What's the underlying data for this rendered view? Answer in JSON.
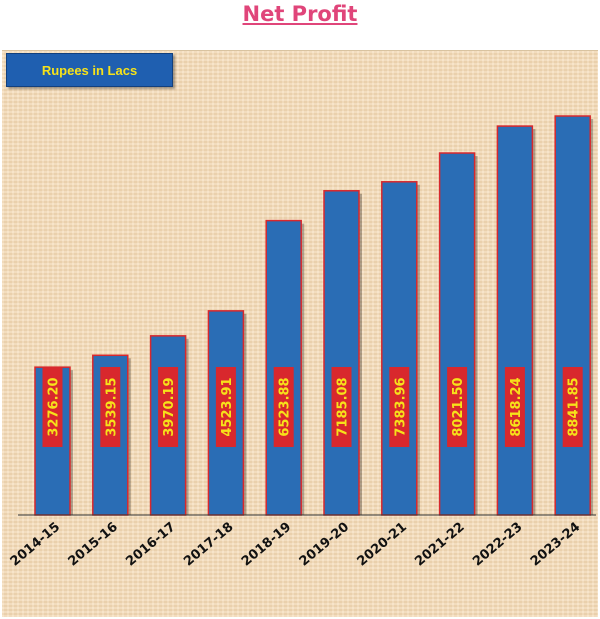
{
  "title": "Net Profit",
  "unit_label": "Rupees in Lacs",
  "colors": {
    "title": "#e0457a",
    "bar_fill": "#2a6db5",
    "bar_border": "#d8282d",
    "label_bg": "#d8282d",
    "label_text": "#f6e21a",
    "panel_bg": "#f4d9b4",
    "unit_box_bg": "#1f5fb0"
  },
  "chart_data": {
    "type": "bar",
    "title": "Net Profit",
    "ylabel": "Rupees in Lacs",
    "categories": [
      "2014-15",
      "2015-16",
      "2016-17",
      "2017-18",
      "2018-19",
      "2019-20",
      "2020-21",
      "2021-22",
      "2022-23",
      "2023-24"
    ],
    "values": [
      3276.2,
      3539.15,
      3970.19,
      4523.91,
      6523.88,
      7185.08,
      7383.96,
      8021.5,
      8618.24,
      8841.85
    ],
    "value_labels": [
      "3276.20",
      "3539.15",
      "3970.19",
      "4523.91",
      "6523.88",
      "7185.08",
      "7383.96",
      "8021.50",
      "8618.24",
      "8841.85"
    ],
    "ylim": [
      0,
      9000
    ],
    "grid": false,
    "legend": "none"
  }
}
